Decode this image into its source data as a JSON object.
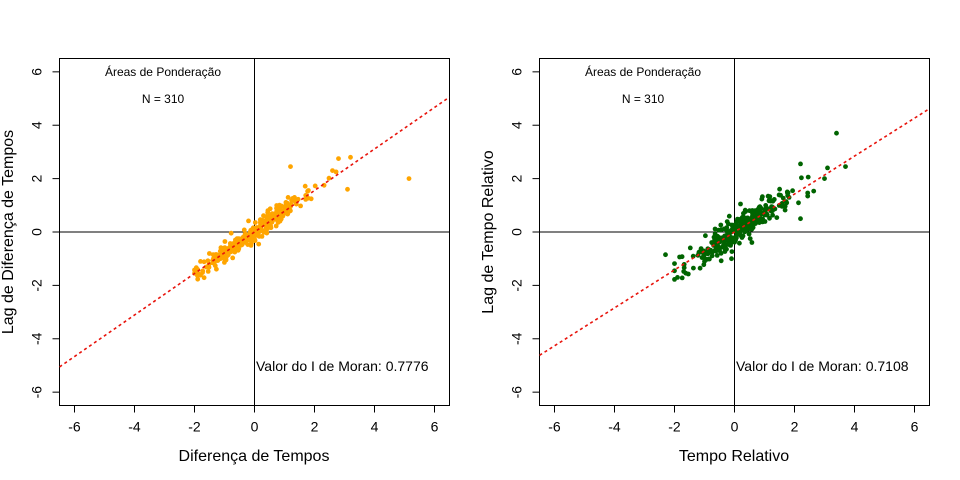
{
  "chart_data": [
    {
      "type": "scatter",
      "title": "",
      "xlabel": "Diferença de Tempos",
      "ylabel": "Lag de Diferença de Tempos",
      "xlim": [
        -6.5,
        6.5
      ],
      "ylim": [
        -6.5,
        6.5
      ],
      "xticks": [
        -6,
        -4,
        -2,
        0,
        2,
        4,
        6
      ],
      "yticks": [
        -6,
        -4,
        -2,
        0,
        2,
        4,
        6
      ],
      "xtick_labels": [
        "-6",
        "-4",
        "-2",
        "0",
        "2",
        "4",
        "6"
      ],
      "ytick_labels": [
        "-6",
        "-4",
        "-2",
        "0",
        "2",
        "4",
        "6"
      ],
      "annotation_area": "Áreas de Ponderação",
      "annotation_n": "N = 310",
      "annotation_moran": "Valor do I de Moran: 0.7776",
      "point_color": "#FFA500",
      "line_color": "#E8140C",
      "regression": {
        "slope": 0.7776,
        "intercept": 0
      },
      "n": 310,
      "noise": 0.3,
      "x_spread": 0.9,
      "seed": 7,
      "extra_points": [
        [
          5.15,
          2.0
        ],
        [
          3.2,
          2.8
        ],
        [
          2.8,
          2.75
        ],
        [
          1.2,
          2.45
        ],
        [
          2.6,
          2.3
        ],
        [
          -1.95,
          -1.4
        ],
        [
          -1.8,
          -1.1
        ],
        [
          3.1,
          1.6
        ]
      ]
    },
    {
      "type": "scatter",
      "title": "",
      "xlabel": "Tempo Relativo",
      "ylabel": "Lag de Tempo Relativo",
      "xlim": [
        -6.5,
        6.5
      ],
      "ylim": [
        -6.5,
        6.5
      ],
      "xticks": [
        -6,
        -4,
        -2,
        0,
        2,
        4,
        6
      ],
      "yticks": [
        -6,
        -4,
        -2,
        0,
        2,
        4,
        6
      ],
      "xtick_labels": [
        "-6",
        "-4",
        "-2",
        "0",
        "2",
        "4",
        "6"
      ],
      "ytick_labels": [
        "-6",
        "-4",
        "-2",
        "0",
        "2",
        "4",
        "6"
      ],
      "annotation_area": "Áreas de Ponderação",
      "annotation_n": "N = 310",
      "annotation_moran": "Valor do I de Moran: 0.7108",
      "point_color": "#006400",
      "line_color": "#E8140C",
      "regression": {
        "slope": 0.7108,
        "intercept": 0
      },
      "n": 310,
      "noise": 0.45,
      "x_spread": 0.95,
      "seed": 13,
      "extra_points": [
        [
          3.4,
          3.7
        ],
        [
          -2.3,
          -0.85
        ],
        [
          3.7,
          2.45
        ],
        [
          2.2,
          2.55
        ],
        [
          3.1,
          2.4
        ],
        [
          3.0,
          2.0
        ],
        [
          2.2,
          0.5
        ],
        [
          -1.9,
          -1.7
        ],
        [
          -0.1,
          -1.0
        ],
        [
          0.2,
          1.05
        ]
      ]
    }
  ]
}
